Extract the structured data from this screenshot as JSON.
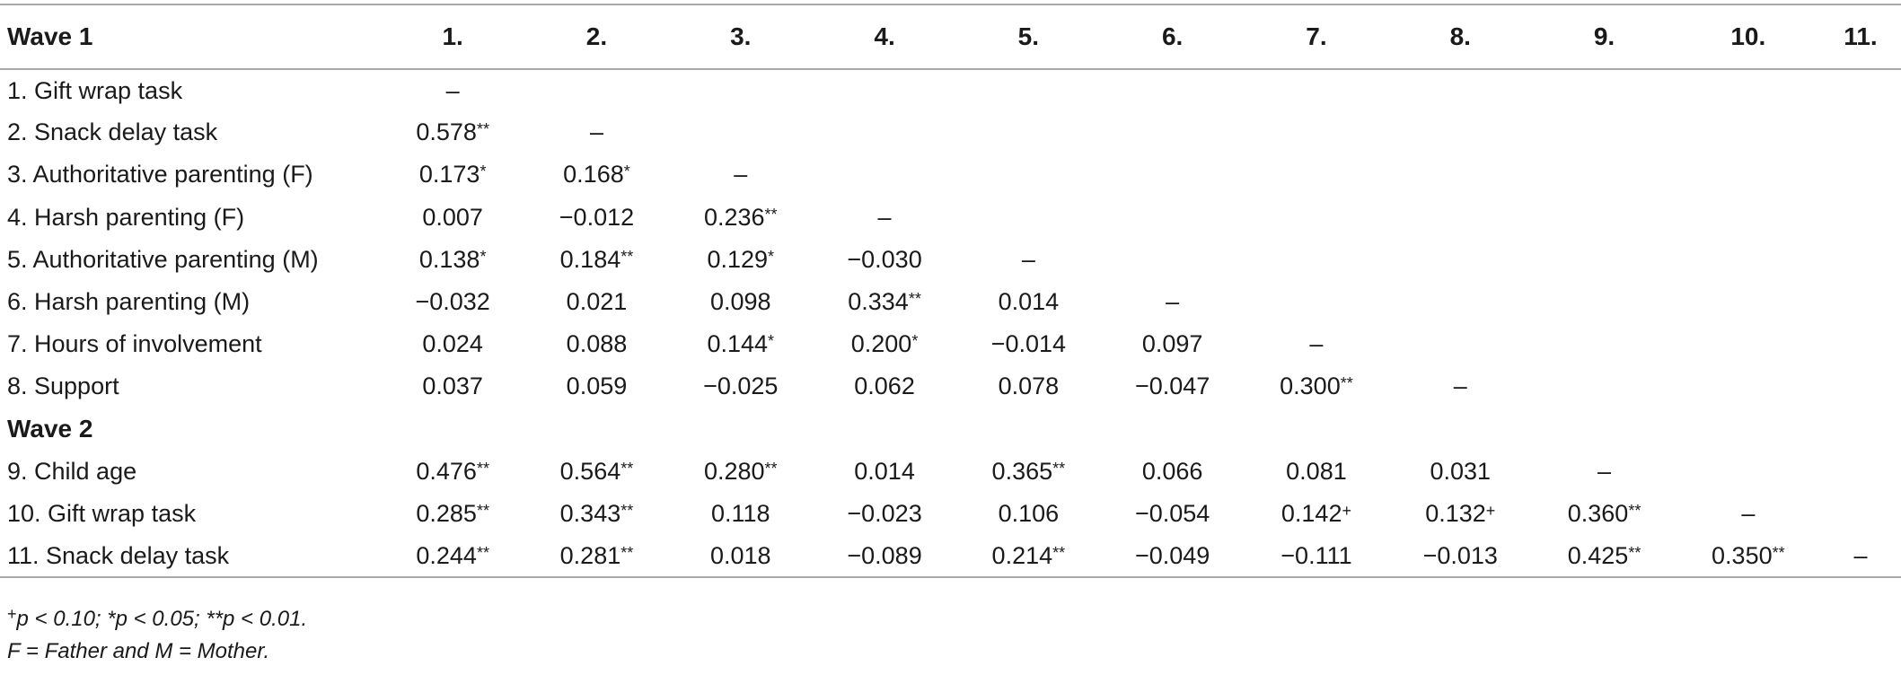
{
  "table": {
    "section_headers": [
      "Wave 1",
      "Wave 2"
    ],
    "columns": [
      "1.",
      "2.",
      "3.",
      "4.",
      "5.",
      "6.",
      "7.",
      "8.",
      "9.",
      "10.",
      "11."
    ],
    "wave1_rows": [
      {
        "label": "1. Gift wrap task",
        "cells": [
          {
            "v": "–",
            "s": ""
          }
        ]
      },
      {
        "label": "2. Snack delay task",
        "cells": [
          {
            "v": "0.578",
            "s": "**"
          },
          {
            "v": "–",
            "s": ""
          }
        ]
      },
      {
        "label": "3. Authoritative parenting (F)",
        "cells": [
          {
            "v": "0.173",
            "s": "*"
          },
          {
            "v": "0.168",
            "s": "*"
          },
          {
            "v": "–",
            "s": ""
          }
        ]
      },
      {
        "label": "4. Harsh parenting (F)",
        "cells": [
          {
            "v": "0.007",
            "s": ""
          },
          {
            "v": "−0.012",
            "s": ""
          },
          {
            "v": "0.236",
            "s": "**"
          },
          {
            "v": "–",
            "s": ""
          }
        ]
      },
      {
        "label": "5. Authoritative parenting (M)",
        "cells": [
          {
            "v": "0.138",
            "s": "*"
          },
          {
            "v": "0.184",
            "s": "**"
          },
          {
            "v": "0.129",
            "s": "*"
          },
          {
            "v": "−0.030",
            "s": ""
          },
          {
            "v": "–",
            "s": ""
          }
        ]
      },
      {
        "label": "6. Harsh parenting (M)",
        "cells": [
          {
            "v": "−0.032",
            "s": ""
          },
          {
            "v": "0.021",
            "s": ""
          },
          {
            "v": "0.098",
            "s": ""
          },
          {
            "v": "0.334",
            "s": "**"
          },
          {
            "v": "0.014",
            "s": ""
          },
          {
            "v": "–",
            "s": ""
          }
        ]
      },
      {
        "label": "7. Hours of involvement",
        "cells": [
          {
            "v": "0.024",
            "s": ""
          },
          {
            "v": "0.088",
            "s": ""
          },
          {
            "v": "0.144",
            "s": "*"
          },
          {
            "v": "0.200",
            "s": "*"
          },
          {
            "v": "−0.014",
            "s": ""
          },
          {
            "v": "0.097",
            "s": ""
          },
          {
            "v": "–",
            "s": ""
          }
        ]
      },
      {
        "label": "8. Support",
        "cells": [
          {
            "v": "0.037",
            "s": ""
          },
          {
            "v": "0.059",
            "s": ""
          },
          {
            "v": "−0.025",
            "s": ""
          },
          {
            "v": "0.062",
            "s": ""
          },
          {
            "v": "0.078",
            "s": ""
          },
          {
            "v": "−0.047",
            "s": ""
          },
          {
            "v": "0.300",
            "s": "**"
          },
          {
            "v": "–",
            "s": ""
          }
        ]
      }
    ],
    "wave2_rows": [
      {
        "label": "9. Child age",
        "cells": [
          {
            "v": "0.476",
            "s": "**"
          },
          {
            "v": "0.564",
            "s": "**"
          },
          {
            "v": "0.280",
            "s": "**"
          },
          {
            "v": "0.014",
            "s": ""
          },
          {
            "v": "0.365",
            "s": "**"
          },
          {
            "v": "0.066",
            "s": ""
          },
          {
            "v": "0.081",
            "s": ""
          },
          {
            "v": "0.031",
            "s": ""
          },
          {
            "v": "–",
            "s": ""
          }
        ]
      },
      {
        "label": "10. Gift wrap task",
        "cells": [
          {
            "v": "0.285",
            "s": "**"
          },
          {
            "v": "0.343",
            "s": "**"
          },
          {
            "v": "0.118",
            "s": ""
          },
          {
            "v": "−0.023",
            "s": ""
          },
          {
            "v": "0.106",
            "s": ""
          },
          {
            "v": "−0.054",
            "s": ""
          },
          {
            "v": "0.142",
            "s": "+"
          },
          {
            "v": "0.132",
            "s": "+"
          },
          {
            "v": "0.360",
            "s": "**"
          },
          {
            "v": "–",
            "s": ""
          }
        ]
      },
      {
        "label": "11. Snack delay task",
        "cells": [
          {
            "v": "0.244",
            "s": "**"
          },
          {
            "v": "0.281",
            "s": "**"
          },
          {
            "v": "0.018",
            "s": ""
          },
          {
            "v": "−0.089",
            "s": ""
          },
          {
            "v": "0.214",
            "s": "**"
          },
          {
            "v": "−0.049",
            "s": ""
          },
          {
            "v": "−0.111",
            "s": ""
          },
          {
            "v": "−0.013",
            "s": ""
          },
          {
            "v": "0.425",
            "s": "**"
          },
          {
            "v": "0.350",
            "s": "**"
          },
          {
            "v": "–",
            "s": ""
          }
        ]
      }
    ]
  },
  "notes": {
    "significance_plus": "+",
    "significance_text": "p < 0.10; *p < 0.05; **p < 0.01.",
    "abbreviations": "F = Father and M = Mother."
  }
}
